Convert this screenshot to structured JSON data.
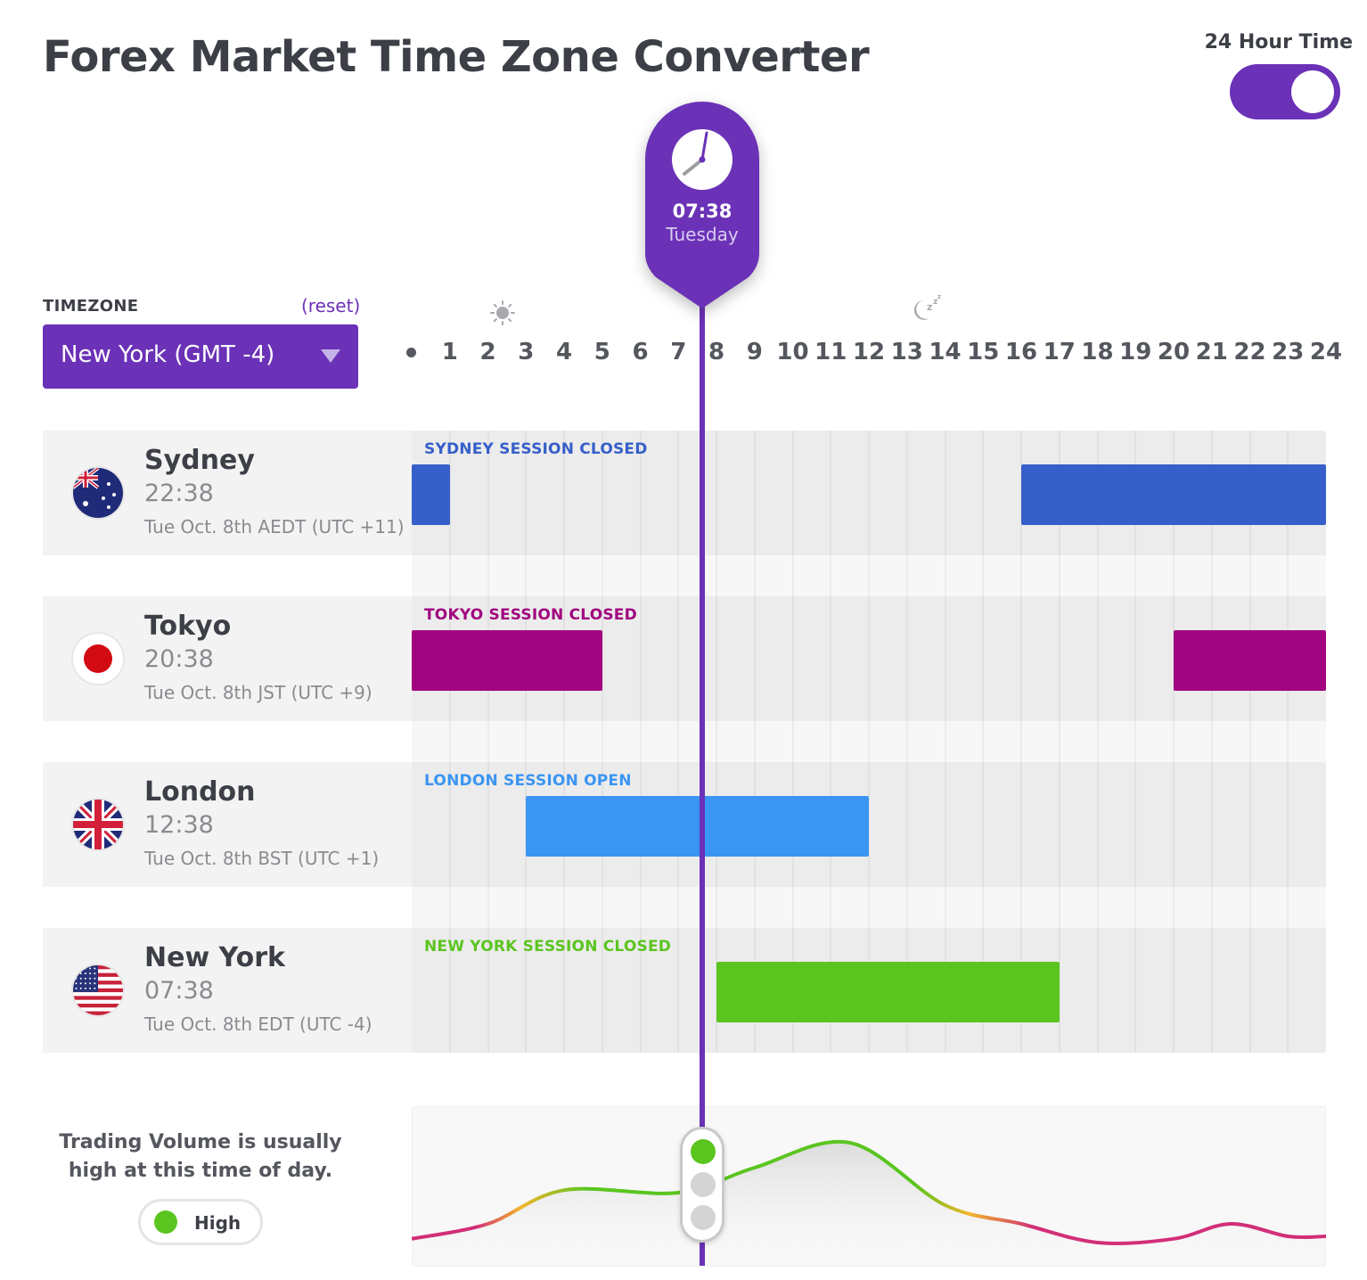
{
  "header": {
    "title": "Forex Market Time Zone Converter"
  },
  "toggle": {
    "label": "24 Hour Time",
    "on": true
  },
  "timezone": {
    "label": "TIMEZONE",
    "reset": "(reset)",
    "selected": "New York (GMT -4)"
  },
  "hours": [
    "1",
    "2",
    "3",
    "4",
    "5",
    "6",
    "7",
    "8",
    "9",
    "10",
    "11",
    "12",
    "13",
    "14",
    "15",
    "16",
    "17",
    "18",
    "19",
    "20",
    "21",
    "22",
    "23",
    "24"
  ],
  "current": {
    "time": "07:38",
    "day": "Tuesday",
    "hour_value": 7.633
  },
  "cities": [
    {
      "name": "Sydney",
      "time": "22:38",
      "date": "Tue Oct. 8th AEDT (UTC +11)",
      "flag": "australia-flag-icon",
      "session": "SYDNEY SESSION CLOSED",
      "color": "#365fc9",
      "bars": [
        [
          0,
          1
        ],
        [
          16,
          24
        ]
      ]
    },
    {
      "name": "Tokyo",
      "time": "20:38",
      "date": "Tue Oct. 8th JST (UTC +9)",
      "flag": "japan-flag-icon",
      "session": "TOKYO SESSION CLOSED",
      "color": "#a1057f",
      "bars": [
        [
          0,
          5
        ],
        [
          20,
          24
        ]
      ]
    },
    {
      "name": "London",
      "time": "12:38",
      "date": "Tue Oct. 8th BST (UTC +1)",
      "flag": "uk-flag-icon",
      "session": "LONDON SESSION OPEN",
      "color": "#3b95f2",
      "bars": [
        [
          3,
          12
        ]
      ]
    },
    {
      "name": "New York",
      "time": "07:38",
      "date": "Tue Oct. 8th EDT (UTC -4)",
      "flag": "usa-flag-icon",
      "session": "NEW YORK SESSION CLOSED",
      "color": "#5bc520",
      "bars": [
        [
          8,
          17
        ]
      ]
    }
  ],
  "label_colors": [
    "#365fc9",
    "#a1057f",
    "#3b95f2",
    "#5bc520"
  ],
  "volume": {
    "message": "Trading Volume is usually high at this time of day.",
    "level": "High",
    "level_color": "#5bc520",
    "curve": [
      [
        0,
        0.08
      ],
      [
        2,
        0.2
      ],
      [
        4,
        0.47
      ],
      [
        7,
        0.45
      ],
      [
        9,
        0.65
      ],
      [
        11.5,
        0.85
      ],
      [
        14,
        0.35
      ],
      [
        16,
        0.2
      ],
      [
        18,
        0.05
      ],
      [
        20,
        0.08
      ],
      [
        21.5,
        0.2
      ],
      [
        23,
        0.1
      ],
      [
        24,
        0.1
      ]
    ]
  },
  "icons": {
    "sun": "sun-icon",
    "moon": "moon-icon",
    "clock": "clock-icon",
    "dropdown": "chevron-down-icon"
  }
}
